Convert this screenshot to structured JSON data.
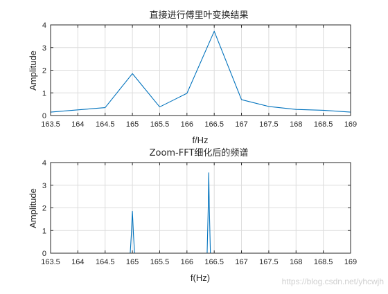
{
  "watermark": "https://blog.csdn.net/yhcwjh",
  "chart_data": [
    {
      "type": "line",
      "title": "直接进行傅里叶变换结果",
      "xlabel": "f/Hz",
      "ylabel": "Amplitude",
      "xlim": [
        163.5,
        169
      ],
      "ylim": [
        0,
        4
      ],
      "xticks": [
        "163.5",
        "164",
        "164.5",
        "165",
        "165.5",
        "166",
        "166.5",
        "167",
        "167.5",
        "168",
        "168.5",
        "169"
      ],
      "yticks": [
        "0",
        "1",
        "2",
        "3",
        "4"
      ],
      "grid": true,
      "line_color": "#0072bd",
      "series": [
        {
          "x": [
            163.5,
            164.0,
            164.5,
            165.0,
            165.5,
            166.0,
            166.5,
            167.0,
            167.5,
            168.0,
            168.5,
            169.0
          ],
          "y": [
            0.15,
            0.25,
            0.35,
            1.85,
            0.38,
            0.98,
            3.72,
            0.7,
            0.4,
            0.27,
            0.23,
            0.15
          ]
        }
      ]
    },
    {
      "type": "line",
      "title": "Zoom-FFT细化后的频谱",
      "xlabel": "f(Hz)",
      "ylabel": "Amplitude",
      "xlim": [
        163.5,
        169
      ],
      "ylim": [
        0,
        4
      ],
      "xticks": [
        "163.5",
        "164",
        "164.5",
        "165",
        "165.5",
        "166",
        "166.5",
        "167",
        "167.5",
        "168",
        "168.5",
        "169"
      ],
      "yticks": [
        "0",
        "1",
        "2",
        "3",
        "4"
      ],
      "grid": true,
      "line_color": "#0072bd",
      "series": [
        {
          "x": [
            163.5,
            164.96,
            164.98,
            165.0,
            165.02,
            165.04,
            166.37,
            166.39,
            166.4,
            166.41,
            166.43,
            169.0
          ],
          "y": [
            0,
            0,
            0.8,
            1.85,
            0.8,
            0,
            0,
            2.0,
            3.55,
            2.0,
            0,
            0
          ]
        }
      ]
    }
  ]
}
